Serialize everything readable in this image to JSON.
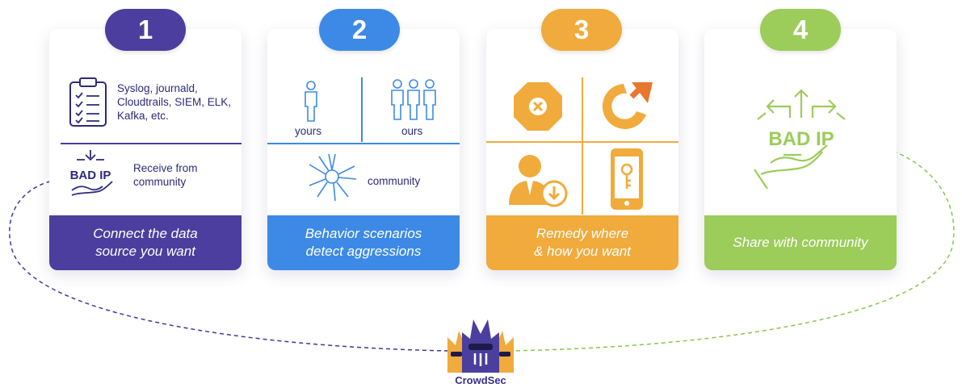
{
  "colors": {
    "step1": "#4b3e9e",
    "step2": "#3c8ae6",
    "step3": "#f0ab3c",
    "step4": "#9ccc5a",
    "step1_text": "#2d2a7a"
  },
  "steps": [
    {
      "number": "1",
      "source_text": "Syslog, journald,\nCloudtrails, SIEM,  ELK,\nKafka, etc.",
      "receive_text": "Receive from\ncommunity",
      "badip": "BAD IP",
      "footer": "Connect the data\nsource you want"
    },
    {
      "number": "2",
      "yours": "yours",
      "ours": "ours",
      "community": "community",
      "footer": "Behavior scenarios\ndetect aggressions"
    },
    {
      "number": "3",
      "footer": "Remedy where\n& how you want"
    },
    {
      "number": "4",
      "badip": "BAD IP",
      "footer": "Share with community"
    }
  ],
  "logo": {
    "name": "CrowdSec"
  }
}
